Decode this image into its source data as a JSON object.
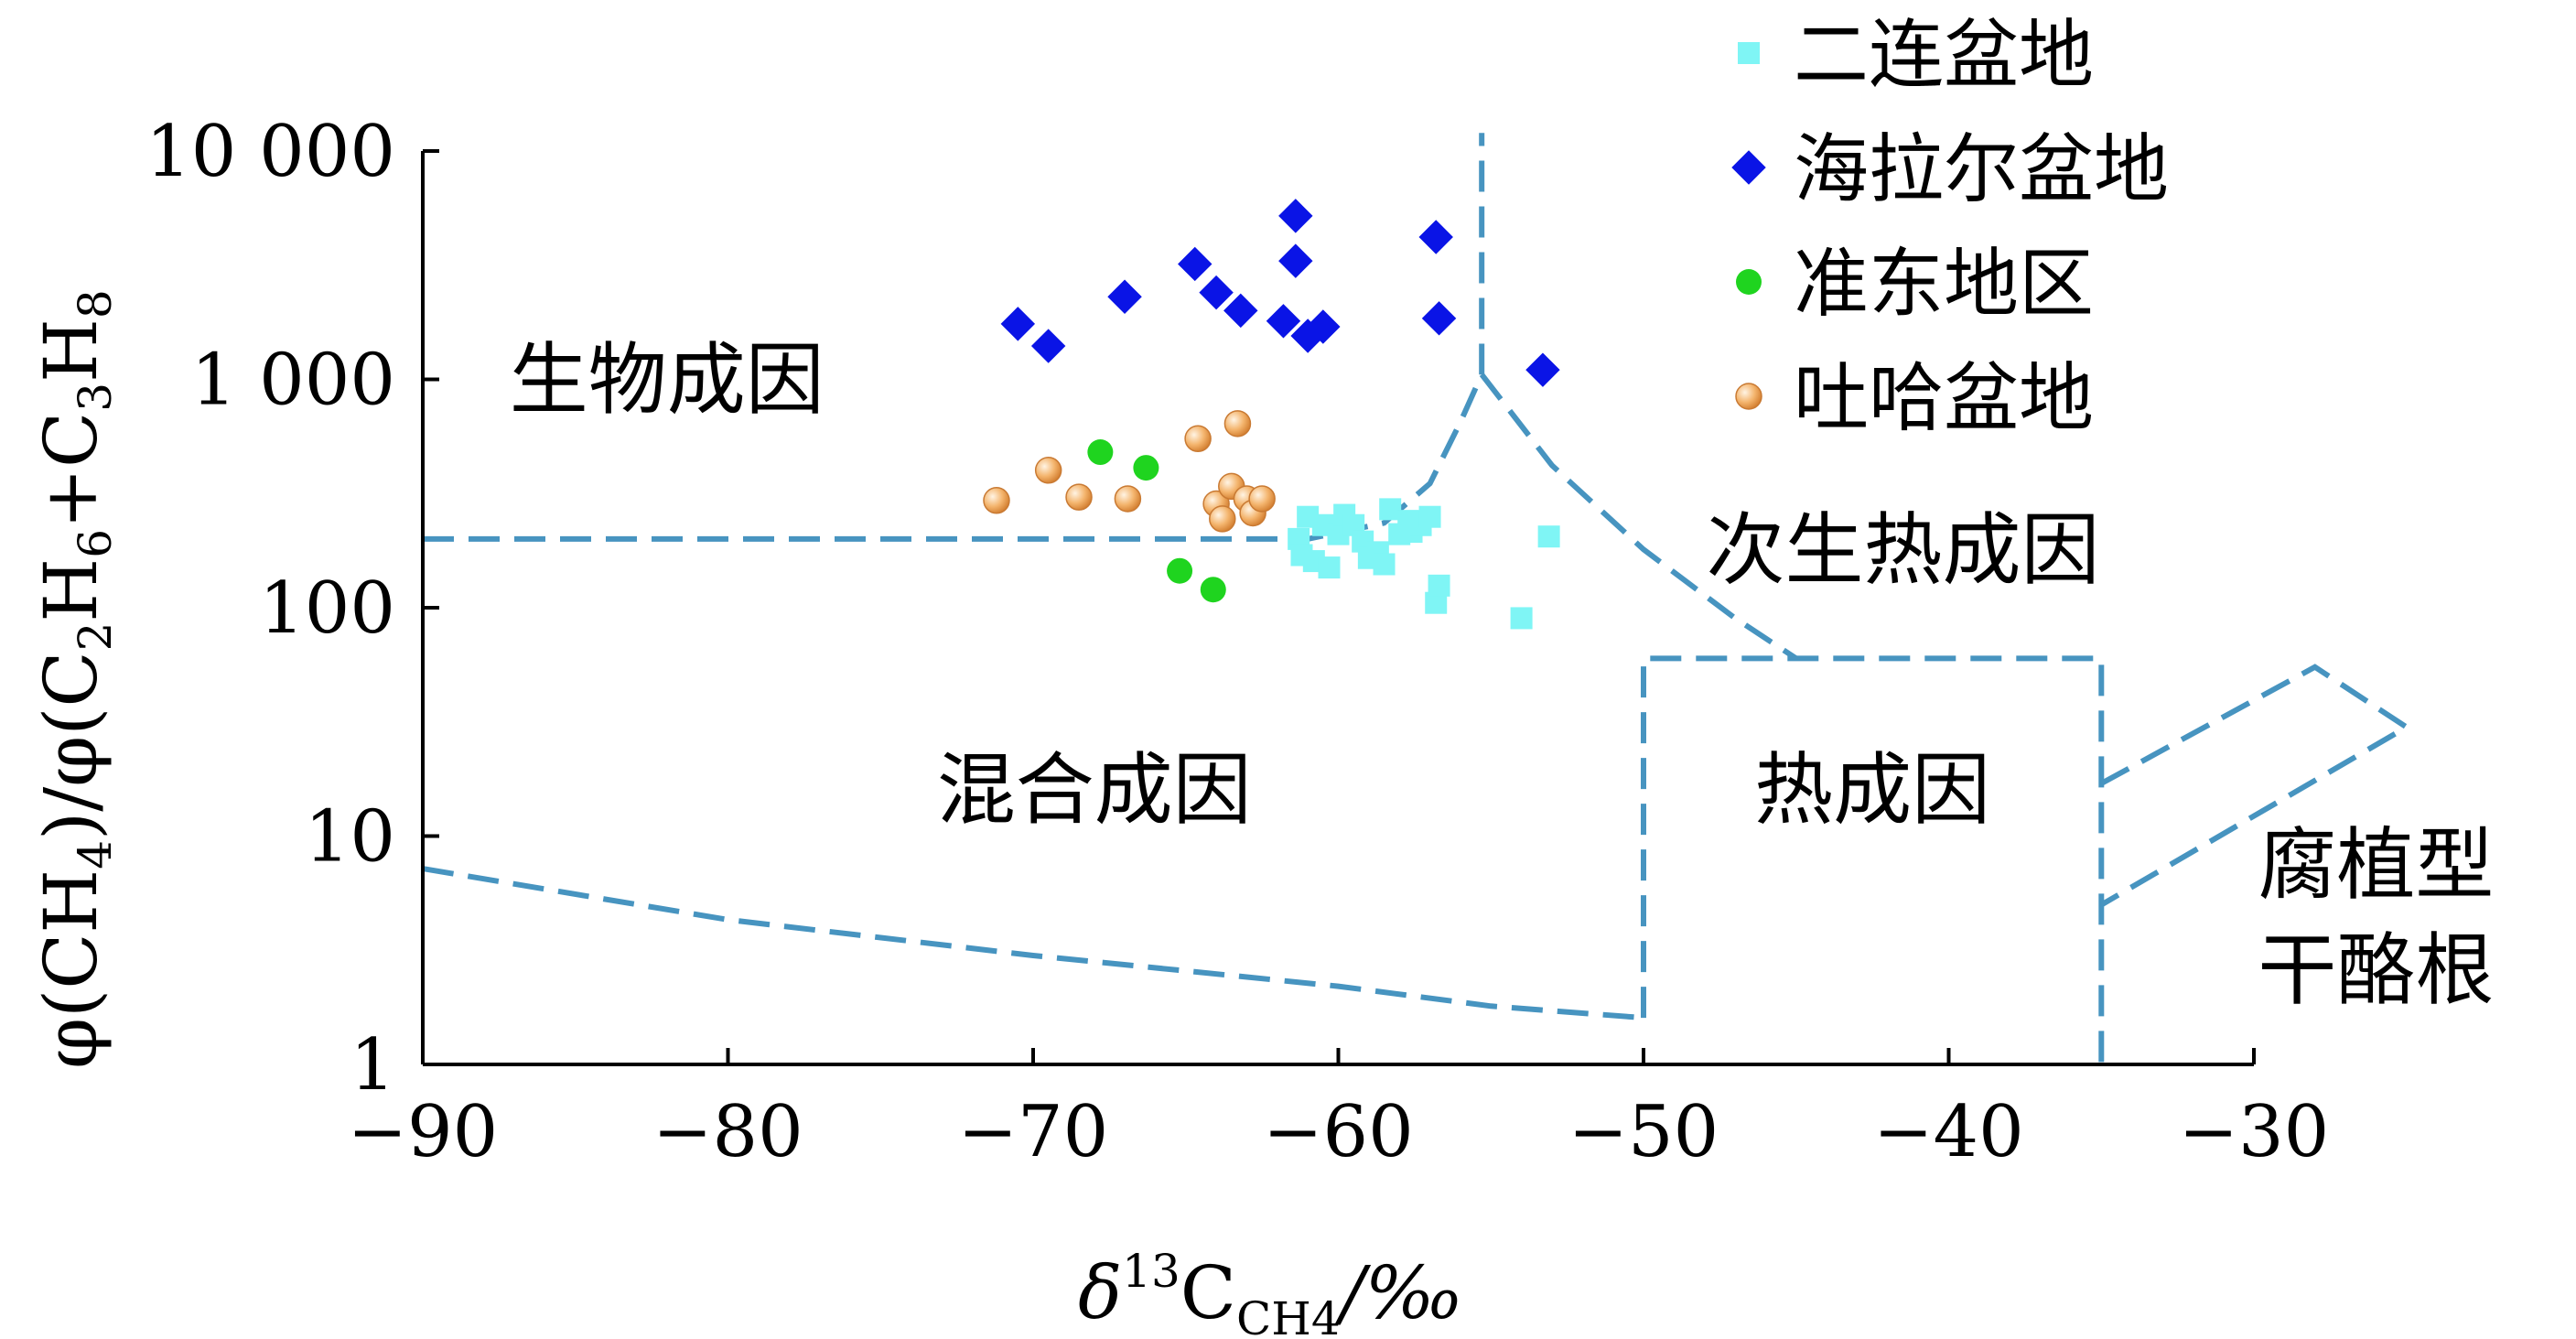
{
  "chart_data": {
    "type": "scatter",
    "x_scale": "linear",
    "y_scale": "log",
    "xlim": [
      -90,
      -30
    ],
    "ylim": [
      1,
      10000
    ],
    "x_ticks": [
      -90,
      -80,
      -70,
      -60,
      -50,
      -40,
      -30
    ],
    "x_tick_labels": [
      "−90",
      "−80",
      "−70",
      "−60",
      "−50",
      "−40",
      "−30"
    ],
    "y_ticks": [
      1,
      10,
      100,
      1000,
      10000
    ],
    "y_tick_labels": [
      "1",
      "10",
      "100",
      "1 000",
      "10 000"
    ],
    "xlabel": {
      "main": "δ",
      "sup": "13",
      "base": "C",
      "sub": "CH4",
      "unit": "/‰"
    },
    "ylabel": {
      "t1": "φ(CH",
      "s1": "4",
      "t2": ")/φ(C",
      "s2": "2",
      "t3": "H",
      "s3": "6",
      "t4": "+C",
      "s4": "3",
      "t5": "H",
      "s5": "8"
    },
    "grid": false,
    "legend_position": "top-right",
    "series": [
      {
        "name": "二连盆地",
        "color": "#7ff5f5",
        "marker": "square",
        "points": [
          [
            -61.3,
            200
          ],
          [
            -61.0,
            250
          ],
          [
            -61.2,
            170
          ],
          [
            -60.8,
            160
          ],
          [
            -60.5,
            230
          ],
          [
            -60.3,
            150
          ],
          [
            -60.0,
            210
          ],
          [
            -59.8,
            255
          ],
          [
            -59.5,
            230
          ],
          [
            -59.2,
            195
          ],
          [
            -59.0,
            165
          ],
          [
            -58.7,
            175
          ],
          [
            -58.5,
            155
          ],
          [
            -58.3,
            270
          ],
          [
            -58.0,
            210
          ],
          [
            -57.7,
            240
          ],
          [
            -57.6,
            215
          ],
          [
            -57.3,
            230
          ],
          [
            -57.0,
            250
          ],
          [
            -56.8,
            105
          ],
          [
            -56.7,
            125
          ],
          [
            -54.0,
            90
          ],
          [
            -53.1,
            205
          ]
        ]
      },
      {
        "name": "海拉尔盆地",
        "color": "#0a14e6",
        "marker": "diamond",
        "points": [
          [
            -70.5,
            1750
          ],
          [
            -69.5,
            1400
          ],
          [
            -67.0,
            2300
          ],
          [
            -64.7,
            3200
          ],
          [
            -64.0,
            2400
          ],
          [
            -63.2,
            2000
          ],
          [
            -61.8,
            1800
          ],
          [
            -61.4,
            5200
          ],
          [
            -61.4,
            3300
          ],
          [
            -61.0,
            1550
          ],
          [
            -60.5,
            1700
          ],
          [
            -56.8,
            4200
          ],
          [
            -56.7,
            1850
          ],
          [
            -53.3,
            1100
          ]
        ]
      },
      {
        "name": "准东地区",
        "color": "#1fd41f",
        "marker": "circle",
        "points": [
          [
            -67.8,
            480
          ],
          [
            -66.3,
            410
          ],
          [
            -65.2,
            145
          ],
          [
            -64.1,
            120
          ]
        ]
      },
      {
        "name": "吐哈盆地",
        "color": "#f3a95a",
        "marker": "sphere",
        "points": [
          [
            -71.2,
            295
          ],
          [
            -69.5,
            400
          ],
          [
            -68.5,
            305
          ],
          [
            -66.9,
            300
          ],
          [
            -64.6,
            550
          ],
          [
            -64.0,
            285
          ],
          [
            -63.8,
            245
          ],
          [
            -63.5,
            340
          ],
          [
            -63.3,
            640
          ],
          [
            -63.0,
            300
          ],
          [
            -62.8,
            260
          ],
          [
            -62.5,
            300
          ]
        ]
      }
    ],
    "boundaries": {
      "color": "#4794c0",
      "lines": [
        [
          [
            -90,
            200
          ],
          [
            -61,
            200
          ],
          [
            -58.5,
            235
          ],
          [
            -57,
            350
          ],
          [
            -56,
            650
          ],
          [
            -55.3,
            1050
          ],
          [
            -55.3,
            12000
          ]
        ],
        [
          [
            -55.3,
            1050
          ],
          [
            -53,
            420
          ],
          [
            -50,
            180
          ],
          [
            -47,
            90
          ],
          [
            -45,
            60
          ]
        ],
        [
          [
            -90,
            7.2
          ],
          [
            -80,
            4.3
          ],
          [
            -70,
            3.0
          ],
          [
            -60,
            2.2
          ],
          [
            -55,
            1.8
          ],
          [
            -50,
            1.6
          ]
        ],
        [
          [
            -50,
            1.6
          ],
          [
            -50,
            60
          ],
          [
            -35,
            60
          ],
          [
            -35,
            1
          ]
        ],
        [
          [
            -35,
            17
          ],
          [
            -28,
            55
          ],
          [
            -25,
            30
          ],
          [
            -35,
            5
          ]
        ]
      ]
    },
    "region_labels": [
      {
        "text": "生物成因",
        "x": -82,
        "y": 1000
      },
      {
        "text": "次生热成因",
        "x": -41.5,
        "y": 180
      },
      {
        "text": "混合成因",
        "x": -68,
        "y": 16
      },
      {
        "text": "热成因",
        "x": -42.5,
        "y": 16
      },
      {
        "text": "腐植型",
        "x": -26,
        "y": 7.5
      },
      {
        "text": "干酪根",
        "x": -26,
        "y": 2.6
      }
    ]
  }
}
